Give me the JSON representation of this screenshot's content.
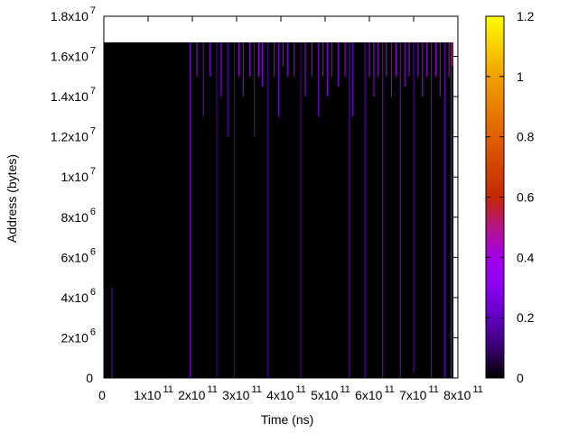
{
  "chart_data": {
    "type": "heatmap",
    "title": "",
    "xlabel": "Time (ns)",
    "ylabel": "Address (bytes)",
    "x_ticks": [
      {
        "value": 0,
        "mantissa": "0",
        "exp": ""
      },
      {
        "value": 100000000000.0,
        "mantissa": "1x10",
        "exp": "11"
      },
      {
        "value": 200000000000.0,
        "mantissa": "2x10",
        "exp": "11"
      },
      {
        "value": 300000000000.0,
        "mantissa": "3x10",
        "exp": "11"
      },
      {
        "value": 400000000000.0,
        "mantissa": "4x10",
        "exp": "11"
      },
      {
        "value": 500000000000.0,
        "mantissa": "5x10",
        "exp": "11"
      },
      {
        "value": 600000000000.0,
        "mantissa": "6x10",
        "exp": "11"
      },
      {
        "value": 700000000000.0,
        "mantissa": "7x10",
        "exp": "11"
      },
      {
        "value": 800000000000.0,
        "mantissa": "8x10",
        "exp": "11"
      }
    ],
    "y_ticks": [
      {
        "value": 0,
        "mantissa": "0",
        "exp": ""
      },
      {
        "value": 2000000.0,
        "mantissa": "2x10",
        "exp": "6"
      },
      {
        "value": 4000000.0,
        "mantissa": "4x10",
        "exp": "6"
      },
      {
        "value": 6000000.0,
        "mantissa": "6x10",
        "exp": "6"
      },
      {
        "value": 8000000.0,
        "mantissa": "8x10",
        "exp": "6"
      },
      {
        "value": 10000000.0,
        "mantissa": "1x10",
        "exp": "7"
      },
      {
        "value": 12000000.0,
        "mantissa": "1.2x10",
        "exp": "7"
      },
      {
        "value": 14000000.0,
        "mantissa": "1.4x10",
        "exp": "7"
      },
      {
        "value": 16000000.0,
        "mantissa": "1.6x10",
        "exp": "7"
      },
      {
        "value": 18000000.0,
        "mantissa": "1.8x10",
        "exp": "7"
      }
    ],
    "xlim": [
      0,
      800000000000.0
    ],
    "ylim": [
      0,
      18000000.0
    ],
    "colorbar": {
      "range": [
        0,
        1.2
      ],
      "ticks": [
        {
          "value": 0,
          "label": "0"
        },
        {
          "value": 0.2,
          "label": "0.2"
        },
        {
          "value": 0.4,
          "label": "0.4"
        },
        {
          "value": 0.6,
          "label": "0.6"
        },
        {
          "value": 0.8,
          "label": "0.8"
        },
        {
          "value": 1.0,
          "label": "1"
        },
        {
          "value": 1.2,
          "label": "1.2"
        }
      ],
      "stops": [
        {
          "value": 0.0,
          "color": "#000000"
        },
        {
          "value": 0.1,
          "color": "#3a0070"
        },
        {
          "value": 0.2,
          "color": "#6000c0"
        },
        {
          "value": 0.3,
          "color": "#8a00f0"
        },
        {
          "value": 0.4,
          "color": "#a400e8"
        },
        {
          "value": 0.5,
          "color": "#b41488"
        },
        {
          "value": 0.6,
          "color": "#c42800"
        },
        {
          "value": 0.8,
          "color": "#e06000"
        },
        {
          "value": 1.0,
          "color": "#f0a000"
        },
        {
          "value": 1.2,
          "color": "#ffff00"
        }
      ]
    },
    "background": {
      "x_range": [
        0,
        790000000000.0
      ],
      "y_range": [
        0,
        16700000.0
      ],
      "value": 0
    },
    "streaks": [
      {
        "x": 18000000000.0,
        "y_range": [
          0,
          4500000.0
        ],
        "value": 0.2
      },
      {
        "x": 195000000000.0,
        "y_range": [
          0,
          16700000.0
        ],
        "value": 0.25
      },
      {
        "x": 210000000000.0,
        "y_range": [
          15000000.0,
          16700000.0
        ],
        "value": 0.35
      },
      {
        "x": 225000000000.0,
        "y_range": [
          13000000.0,
          16700000.0
        ],
        "value": 0.25
      },
      {
        "x": 240000000000.0,
        "y_range": [
          15000000.0,
          16700000.0
        ],
        "value": 0.3
      },
      {
        "x": 255000000000.0,
        "y_range": [
          0,
          16700000.0
        ],
        "value": 0.15
      },
      {
        "x": 265000000000.0,
        "y_range": [
          14000000.0,
          16700000.0
        ],
        "value": 0.3
      },
      {
        "x": 280000000000.0,
        "y_range": [
          12000000.0,
          16700000.0
        ],
        "value": 0.2
      },
      {
        "x": 295000000000.0,
        "y_range": [
          0,
          16700000.0
        ],
        "value": 0.15
      },
      {
        "x": 305000000000.0,
        "y_range": [
          15000000.0,
          16700000.0
        ],
        "value": 0.4
      },
      {
        "x": 315000000000.0,
        "y_range": [
          14000000.0,
          16700000.0
        ],
        "value": 0.3
      },
      {
        "x": 330000000000.0,
        "y_range": [
          15000000.0,
          16700000.0
        ],
        "value": 0.35
      },
      {
        "x": 340000000000.0,
        "y_range": [
          12000000.0,
          16700000.0
        ],
        "value": 0.2
      },
      {
        "x": 350000000000.0,
        "y_range": [
          15000000.0,
          16700000.0
        ],
        "value": 0.4
      },
      {
        "x": 358000000000.0,
        "y_range": [
          14500000.0,
          16700000.0
        ],
        "value": 0.3
      },
      {
        "x": 370000000000.0,
        "y_range": [
          0,
          16700000.0
        ],
        "value": 0.15
      },
      {
        "x": 385000000000.0,
        "y_range": [
          15000000.0,
          16700000.0
        ],
        "value": 0.35
      },
      {
        "x": 395000000000.0,
        "y_range": [
          13000000.0,
          16700000.0
        ],
        "value": 0.25
      },
      {
        "x": 405000000000.0,
        "y_range": [
          15500000.0,
          16700000.0
        ],
        "value": 0.4
      },
      {
        "x": 415000000000.0,
        "y_range": [
          15000000.0,
          16700000.0
        ],
        "value": 0.3
      },
      {
        "x": 430000000000.0,
        "y_range": [
          15000000.0,
          16700000.0
        ],
        "value": 0.35
      },
      {
        "x": 445000000000.0,
        "y_range": [
          0,
          16700000.0
        ],
        "value": 0.15
      },
      {
        "x": 455000000000.0,
        "y_range": [
          14000000.0,
          16700000.0
        ],
        "value": 0.3
      },
      {
        "x": 470000000000.0,
        "y_range": [
          15000000.0,
          16700000.0
        ],
        "value": 0.35
      },
      {
        "x": 485000000000.0,
        "y_range": [
          13000000.0,
          16700000.0
        ],
        "value": 0.25
      },
      {
        "x": 495000000000.0,
        "y_range": [
          15000000.0,
          16700000.0
        ],
        "value": 0.4
      },
      {
        "x": 505000000000.0,
        "y_range": [
          14000000.0,
          16700000.0
        ],
        "value": 0.3
      },
      {
        "x": 515000000000.0,
        "y_range": [
          15000000.0,
          16700000.0
        ],
        "value": 0.35
      },
      {
        "x": 530000000000.0,
        "y_range": [
          14500000.0,
          16700000.0
        ],
        "value": 0.3
      },
      {
        "x": 545000000000.0,
        "y_range": [
          15000000.0,
          16700000.0
        ],
        "value": 0.4
      },
      {
        "x": 555000000000.0,
        "y_range": [
          0,
          16700000.0
        ],
        "value": 0.2
      },
      {
        "x": 562000000000.0,
        "y_range": [
          13000000.0,
          16700000.0
        ],
        "value": 0.25
      },
      {
        "x": 590000000000.0,
        "y_range": [
          0,
          16700000.0
        ],
        "value": 0.2
      },
      {
        "x": 600000000000.0,
        "y_range": [
          15000000.0,
          16700000.0
        ],
        "value": 0.4
      },
      {
        "x": 610000000000.0,
        "y_range": [
          14000000.0,
          16700000.0
        ],
        "value": 0.35
      },
      {
        "x": 620000000000.0,
        "y_range": [
          15000000.0,
          16700000.0
        ],
        "value": 0.4
      },
      {
        "x": 630000000000.0,
        "y_range": [
          0,
          16700000.0
        ],
        "value": 0.25
      },
      {
        "x": 638000000000.0,
        "y_range": [
          15000000.0,
          16700000.0
        ],
        "value": 0.4
      },
      {
        "x": 650000000000.0,
        "y_range": [
          14000000.0,
          16700000.0
        ],
        "value": 0.35
      },
      {
        "x": 660000000000.0,
        "y_range": [
          15000000.0,
          16700000.0
        ],
        "value": 0.4
      },
      {
        "x": 670000000000.0,
        "y_range": [
          0,
          16700000.0
        ],
        "value": 0.25
      },
      {
        "x": 680000000000.0,
        "y_range": [
          14500000.0,
          16700000.0
        ],
        "value": 0.35
      },
      {
        "x": 690000000000.0,
        "y_range": [
          15000000.0,
          16700000.0
        ],
        "value": 0.4
      },
      {
        "x": 700000000000.0,
        "y_range": [
          0,
          16700000.0
        ],
        "value": 0.2
      },
      {
        "x": 710000000000.0,
        "y_range": [
          15000000.0,
          16700000.0
        ],
        "value": 0.4
      },
      {
        "x": 720000000000.0,
        "y_range": [
          14000000.0,
          16700000.0
        ],
        "value": 0.35
      },
      {
        "x": 730000000000.0,
        "y_range": [
          15000000.0,
          16700000.0
        ],
        "value": 0.4
      },
      {
        "x": 740000000000.0,
        "y_range": [
          0,
          16700000.0
        ],
        "value": 0.25
      },
      {
        "x": 750000000000.0,
        "y_range": [
          15000000.0,
          16700000.0
        ],
        "value": 0.4
      },
      {
        "x": 760000000000.0,
        "y_range": [
          14000000.0,
          16700000.0
        ],
        "value": 0.35
      },
      {
        "x": 770000000000.0,
        "y_range": [
          0,
          16700000.0
        ],
        "value": 0.25
      },
      {
        "x": 780000000000.0,
        "y_range": [
          15000000.0,
          16700000.0
        ],
        "value": 0.45
      },
      {
        "x": 785000000000.0,
        "y_range": [
          0,
          16700000.0
        ],
        "value": 0.3
      },
      {
        "x": 788000000000.0,
        "y_range": [
          15500000.0,
          16700000.0
        ],
        "value": 0.55
      }
    ],
    "grid": false,
    "legend": "colorbar-right"
  }
}
